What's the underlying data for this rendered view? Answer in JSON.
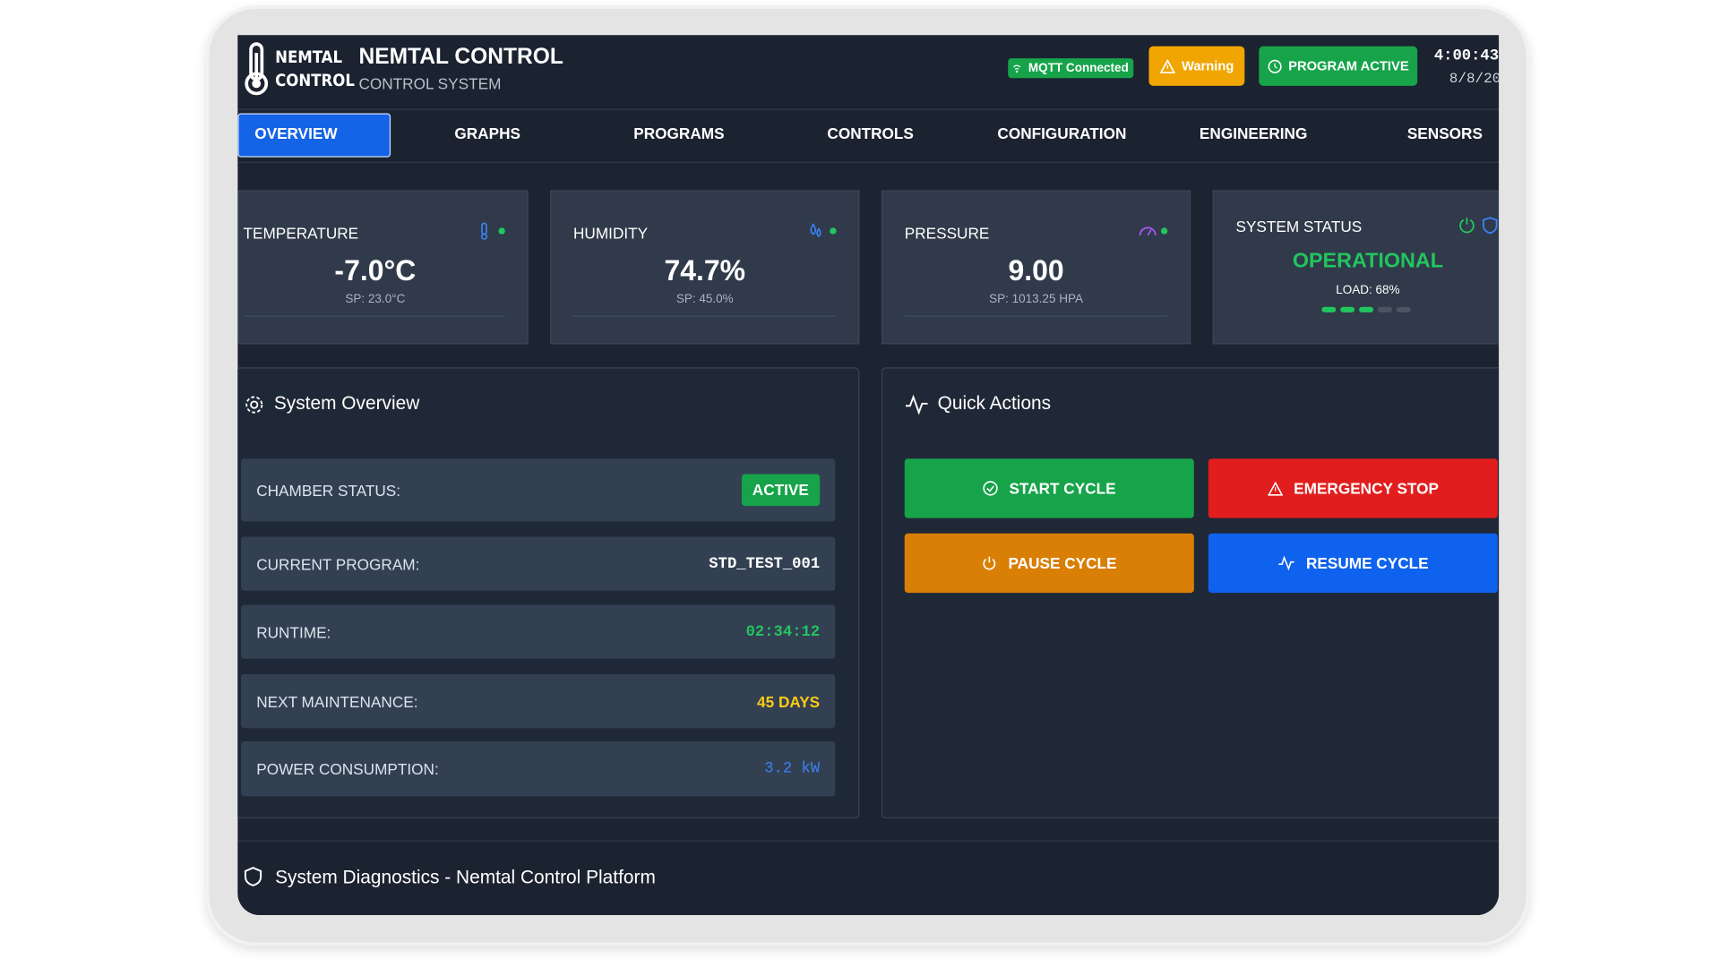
{
  "header": {
    "logo_top": "NEMTAL",
    "logo_bottom": "CONTROL",
    "title": "NEMTAL CONTROL",
    "subtitle": "CONTROL SYSTEM",
    "mqtt": "MQTT Connected",
    "warning": "Warning",
    "program_status": "PROGRAM ACTIVE",
    "time": "4:00:43",
    "date": "8/8/20"
  },
  "nav": {
    "tabs": [
      "OVERVIEW",
      "GRAPHS",
      "PROGRAMS",
      "CONTROLS",
      "CONFIGURATION",
      "ENGINEERING",
      "SENSORS"
    ]
  },
  "cards": [
    {
      "label": "TEMPERATURE",
      "value": "-7.0°C",
      "setpoint": "SP: 23.0°C"
    },
    {
      "label": "HUMIDITY",
      "value": "74.7%",
      "setpoint": "SP: 45.0%"
    },
    {
      "label": "PRESSURE",
      "value": "9.00",
      "setpoint": "SP: 1013.25 HPA"
    }
  ],
  "status_card": {
    "label": "SYSTEM STATUS",
    "value": "OPERATIONAL",
    "load": "LOAD: 68%"
  },
  "overview": {
    "title": "System Overview",
    "rows": [
      {
        "label": "CHAMBER STATUS:",
        "value": "ACTIVE"
      },
      {
        "label": "CURRENT PROGRAM:",
        "value": "STD_TEST_001"
      },
      {
        "label": "RUNTIME:",
        "value": "02:34:12"
      },
      {
        "label": "NEXT MAINTENANCE:",
        "value": "45 DAYS"
      },
      {
        "label": "POWER CONSUMPTION:",
        "value": "3.2 kW"
      }
    ]
  },
  "quick_actions": {
    "title": "Quick Actions",
    "buttons": [
      "START CYCLE",
      "EMERGENCY STOP",
      "PAUSE CYCLE",
      "RESUME CYCLE"
    ]
  },
  "diagnostics": {
    "title": "System Diagnostics - Nemtal Control Platform"
  }
}
